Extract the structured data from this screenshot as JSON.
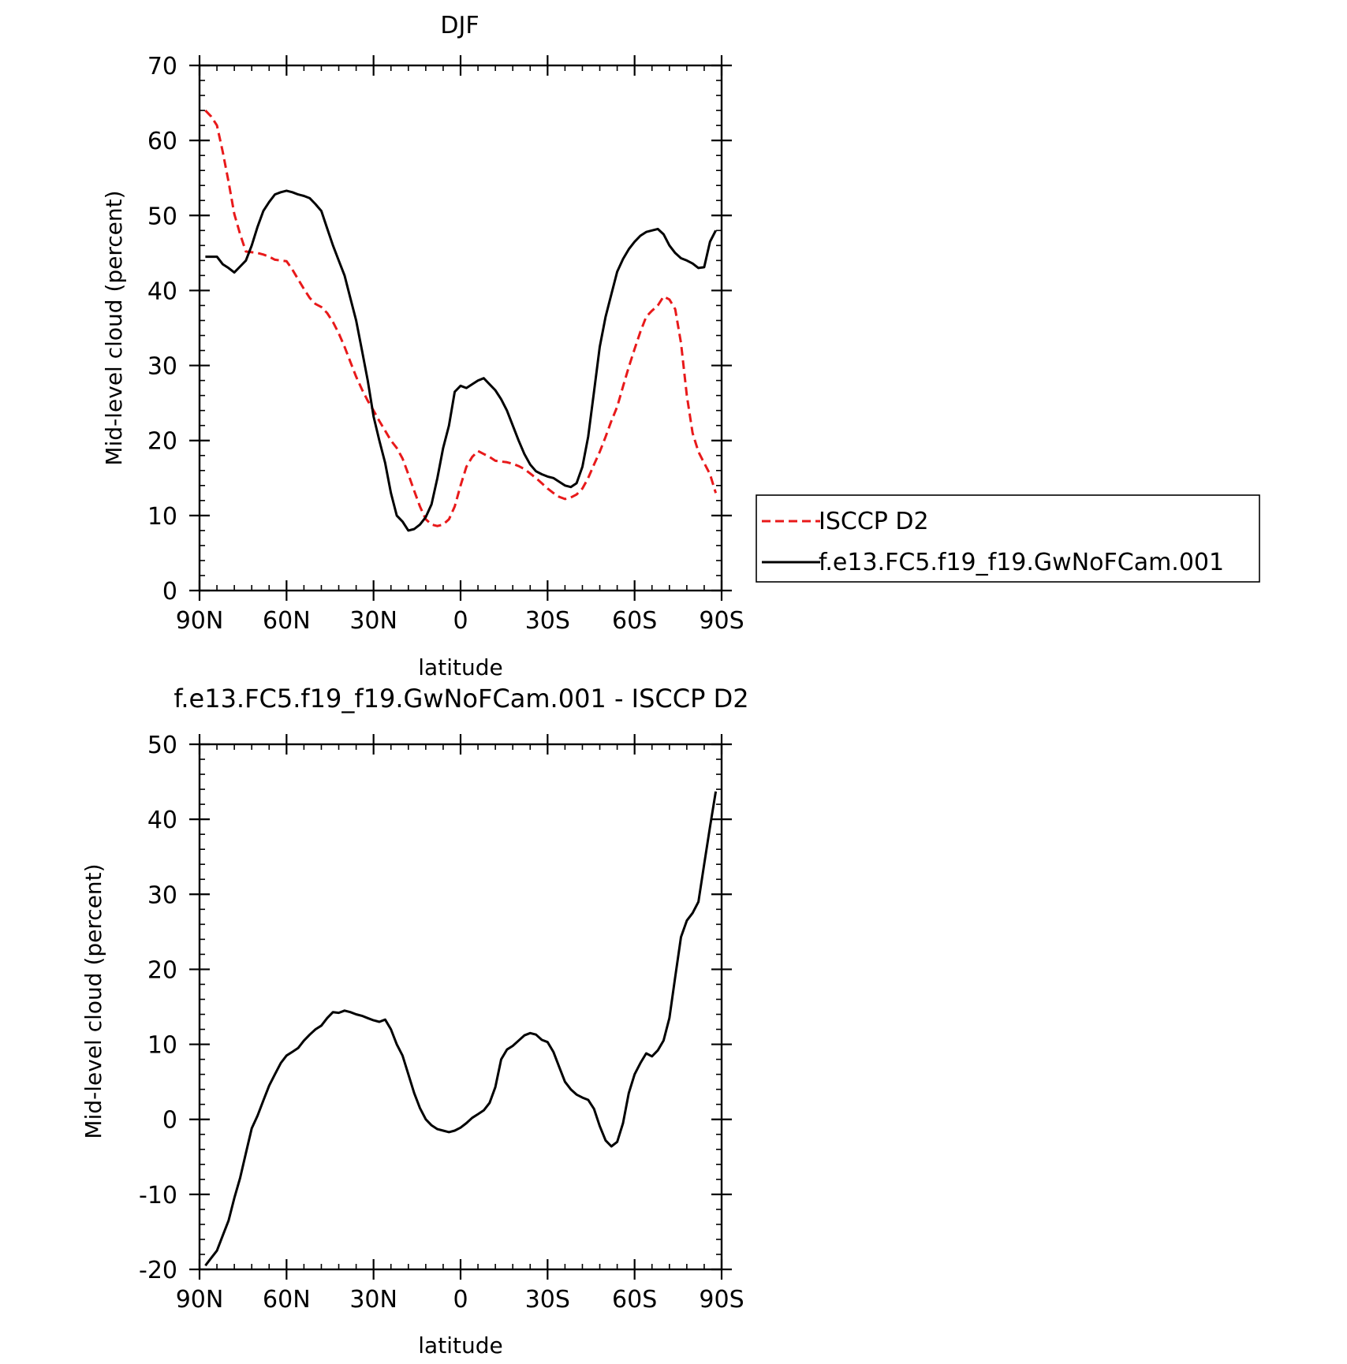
{
  "chart_data": [
    {
      "type": "line",
      "title": "DJF",
      "xlabel": "latitude",
      "ylabel": "Mid-level cloud (percent)",
      "xlim": [
        90,
        -90
      ],
      "ylim": [
        0,
        70
      ],
      "xticks": [
        90,
        60,
        30,
        0,
        -30,
        -60,
        -90
      ],
      "xtick_labels": [
        "90N",
        "60N",
        "30N",
        "0",
        "30S",
        "60S",
        "90S"
      ],
      "yticks": [
        0,
        10,
        20,
        30,
        40,
        50,
        60,
        70
      ],
      "ytick_labels": [
        "0",
        "10",
        "20",
        "30",
        "40",
        "50",
        "60",
        "70"
      ],
      "legend_position": "right",
      "series": [
        {
          "name": "ISCCP D2",
          "color": "#e8191a",
          "dash": "dashed",
          "x": [
            88,
            86,
            84,
            82,
            80,
            78,
            76,
            74,
            72,
            70,
            68,
            66,
            64,
            62,
            60,
            58,
            56,
            54,
            52,
            50,
            48,
            46,
            44,
            42,
            40,
            38,
            36,
            34,
            32,
            30,
            28,
            26,
            24,
            22,
            20,
            18,
            16,
            14,
            12,
            10,
            8,
            6,
            4,
            2,
            0,
            -2,
            -4,
            -6,
            -8,
            -10,
            -12,
            -14,
            -16,
            -18,
            -20,
            -22,
            -24,
            -26,
            -28,
            -30,
            -32,
            -34,
            -36,
            -38,
            -40,
            -42,
            -44,
            -46,
            -48,
            -50,
            -52,
            -54,
            -56,
            -58,
            -60,
            -62,
            -64,
            -66,
            -68,
            -70,
            -72,
            -74,
            -76,
            -78,
            -80,
            -82,
            -84,
            -86,
            -88
          ],
          "values": [
            64.0,
            63.2,
            62.0,
            58.5,
            54.5,
            50.2,
            47.5,
            45.2,
            45.1,
            45.0,
            44.8,
            44.5,
            44.1,
            44.0,
            43.9,
            42.8,
            41.5,
            40.2,
            39.0,
            38.2,
            37.8,
            37.0,
            35.8,
            34.3,
            32.5,
            30.5,
            28.5,
            26.8,
            25.3,
            24.0,
            22.6,
            21.3,
            20.0,
            19.0,
            17.6,
            15.5,
            13.3,
            11.2,
            9.5,
            8.8,
            8.6,
            8.8,
            9.5,
            11.2,
            14.0,
            16.5,
            17.8,
            18.6,
            18.2,
            17.8,
            17.3,
            17.2,
            17.1,
            16.9,
            16.6,
            16.2,
            15.6,
            15.0,
            14.3,
            13.6,
            13.0,
            12.5,
            12.2,
            12.4,
            12.8,
            13.6,
            15.0,
            16.8,
            18.5,
            20.5,
            22.6,
            24.5,
            27.2,
            29.8,
            32.2,
            34.5,
            36.5,
            37.3,
            38.0,
            39.2,
            38.8,
            37.5,
            33.0,
            26.0,
            21.0,
            18.5,
            17.0,
            15.5,
            13.0
          ]
        },
        {
          "name": "f.e13.FC5.f19_f19.GwNoFCam.001",
          "color": "#000000",
          "dash": "solid",
          "x": [
            88,
            86,
            84,
            82,
            80,
            78,
            76,
            74,
            72,
            70,
            68,
            66,
            64,
            62,
            60,
            58,
            56,
            54,
            52,
            50,
            48,
            46,
            44,
            42,
            40,
            38,
            36,
            34,
            32,
            30,
            28,
            26,
            24,
            22,
            20,
            18,
            16,
            14,
            12,
            10,
            8,
            6,
            4,
            2,
            0,
            -2,
            -4,
            -6,
            -8,
            -10,
            -12,
            -14,
            -16,
            -18,
            -20,
            -22,
            -24,
            -26,
            -28,
            -30,
            -32,
            -34,
            -36,
            -38,
            -40,
            -42,
            -44,
            -46,
            -48,
            -50,
            -52,
            -54,
            -56,
            -58,
            -60,
            -62,
            -64,
            -66,
            -68,
            -70,
            -72,
            -74,
            -76,
            -78,
            -80,
            -82,
            -84,
            -86,
            -88
          ],
          "values": [
            44.5,
            44.5,
            44.5,
            43.5,
            43.0,
            42.4,
            43.2,
            44.0,
            46.0,
            48.5,
            50.6,
            51.8,
            52.8,
            53.1,
            53.3,
            53.1,
            52.8,
            52.6,
            52.3,
            51.5,
            50.6,
            48.3,
            46.0,
            44.0,
            42.0,
            39.0,
            36.0,
            32.0,
            28.0,
            23.2,
            20.0,
            17.0,
            13.0,
            10.0,
            9.2,
            8.0,
            8.2,
            8.8,
            9.8,
            11.5,
            15.0,
            19.0,
            22.0,
            26.5,
            27.3,
            27.0,
            27.5,
            28.0,
            28.3,
            27.5,
            26.7,
            25.5,
            24.0,
            22.0,
            20.0,
            18.2,
            16.8,
            15.9,
            15.5,
            15.2,
            15.0,
            14.5,
            14.0,
            13.8,
            14.3,
            16.5,
            20.5,
            26.5,
            32.5,
            36.5,
            39.5,
            42.5,
            44.2,
            45.5,
            46.5,
            47.3,
            47.8,
            48.0,
            48.2,
            47.5,
            46.0,
            45.0,
            44.3,
            44.0,
            43.6,
            43.0,
            43.1,
            46.5,
            48.0
          ]
        }
      ]
    },
    {
      "type": "line",
      "title": "f.e13.FC5.f19_f19.GwNoFCam.001 - ISCCP D2",
      "xlabel": "latitude",
      "ylabel": "Mid-level cloud (percent)",
      "xlim": [
        90,
        -90
      ],
      "ylim": [
        -20,
        50
      ],
      "xticks": [
        90,
        60,
        30,
        0,
        -30,
        -60,
        -90
      ],
      "xtick_labels": [
        "90N",
        "60N",
        "30N",
        "0",
        "30S",
        "60S",
        "90S"
      ],
      "yticks": [
        -20,
        -10,
        0,
        10,
        20,
        30,
        40,
        50
      ],
      "ytick_labels": [
        "-20",
        "-10",
        "0",
        "10",
        "20",
        "30",
        "40",
        "50"
      ],
      "series": [
        {
          "color": "#000000",
          "dash": "solid",
          "x": [
            88,
            86,
            84,
            82,
            80,
            78,
            76,
            74,
            72,
            70,
            68,
            66,
            64,
            62,
            60,
            58,
            56,
            54,
            52,
            50,
            48,
            46,
            44,
            42,
            40,
            38,
            36,
            34,
            32,
            30,
            28,
            26,
            24,
            22,
            20,
            18,
            16,
            14,
            12,
            10,
            8,
            6,
            4,
            2,
            0,
            -2,
            -4,
            -6,
            -8,
            -10,
            -12,
            -14,
            -16,
            -18,
            -20,
            -22,
            -24,
            -26,
            -28,
            -30,
            -32,
            -34,
            -36,
            -38,
            -40,
            -42,
            -44,
            -46,
            -48,
            -50,
            -52,
            -54,
            -56,
            -58,
            -60,
            -62,
            -64,
            -66,
            -68,
            -70,
            -72,
            -74,
            -76,
            -78,
            -80,
            -82,
            -84,
            -86,
            -88
          ],
          "values": [
            -19.5,
            -18.5,
            -17.5,
            -15.5,
            -13.5,
            -10.5,
            -7.8,
            -4.5,
            -1.2,
            0.5,
            2.5,
            4.5,
            6.0,
            7.5,
            8.5,
            9.0,
            9.5,
            10.5,
            11.3,
            12.0,
            12.5,
            13.5,
            14.3,
            14.2,
            14.5,
            14.3,
            14.0,
            13.8,
            13.5,
            13.2,
            13.0,
            13.3,
            12.0,
            10.0,
            8.5,
            6.0,
            3.5,
            1.5,
            0.0,
            -0.8,
            -1.3,
            -1.5,
            -1.7,
            -1.5,
            -1.1,
            -0.5,
            0.2,
            0.7,
            1.2,
            2.2,
            4.3,
            8.0,
            9.3,
            9.8,
            10.5,
            11.2,
            11.5,
            11.3,
            10.6,
            10.3,
            9.0,
            7.0,
            5.0,
            4.0,
            3.3,
            2.9,
            2.6,
            1.4,
            -0.9,
            -2.8,
            -3.6,
            -3.0,
            -0.5,
            3.5,
            6.0,
            7.5,
            8.8,
            8.4,
            9.2,
            10.5,
            13.5,
            19.0,
            24.3,
            26.5,
            27.5,
            29.0,
            34.0,
            39.0,
            43.7
          ]
        }
      ]
    }
  ]
}
